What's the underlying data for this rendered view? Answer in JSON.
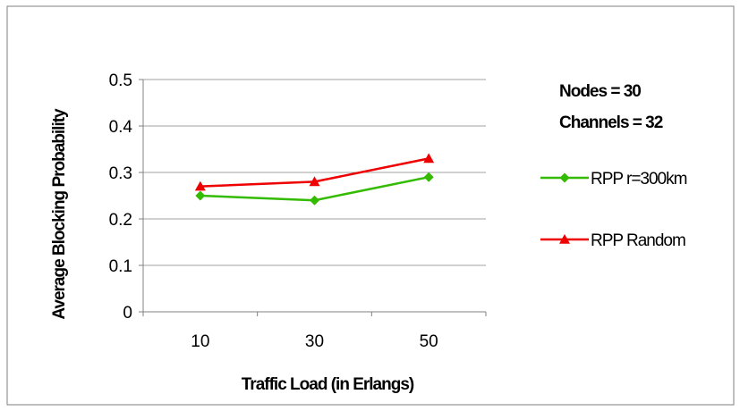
{
  "chart_data": {
    "type": "line",
    "categories": [
      "10",
      "30",
      "50"
    ],
    "series": [
      {
        "name": "RPP r=300km",
        "values": [
          0.25,
          0.24,
          0.29
        ],
        "color": "#33bb00",
        "marker": "diamond"
      },
      {
        "name": "RPP Random",
        "values": [
          0.27,
          0.28,
          0.33
        ],
        "color": "#ee0000",
        "marker": "triangle"
      }
    ],
    "xlabel": "Traffic Load (in Erlangs)",
    "ylabel": "Average Blocking Probability",
    "ylim": [
      0,
      0.5
    ],
    "yticks": [
      "0",
      "0.1",
      "0.2",
      "0.3",
      "0.4",
      "0.5"
    ],
    "grid": true,
    "legend_placement": "right",
    "annotations": [
      "Nodes = 30",
      "Channels = 32"
    ],
    "gridline_color": "#a0a0a0",
    "border_color": "#7f7f7f"
  }
}
